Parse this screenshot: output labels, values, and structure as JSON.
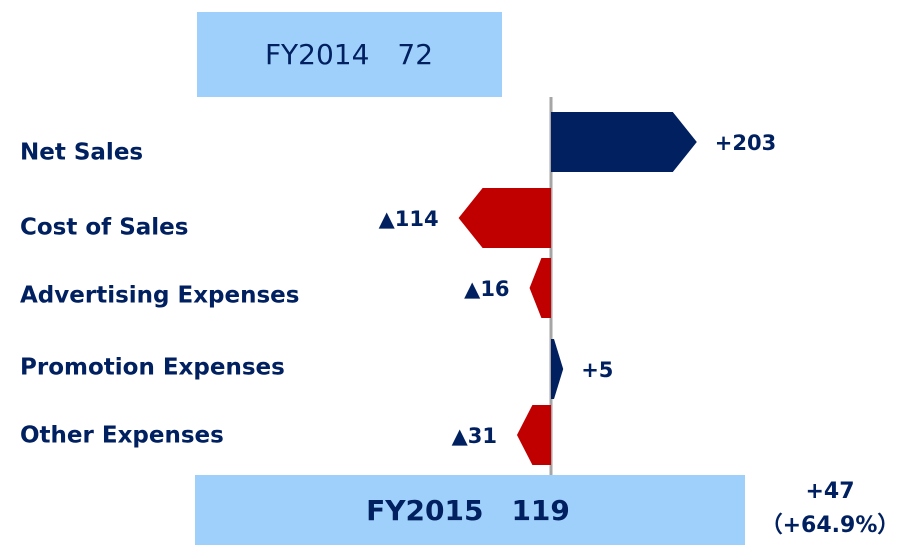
{
  "chart_data": {
    "type": "bar",
    "orientation": "horizontal",
    "categories": [
      "Net Sales",
      "Cost of Sales",
      "Advertising Expenses",
      "Promotion Expenses",
      "Other Expenses"
    ],
    "values": [
      203,
      -114,
      -16,
      5,
      -31
    ],
    "value_labels": [
      "+203",
      "▲114",
      "▲16",
      "+5",
      "▲31"
    ],
    "colors": [
      "#002060",
      "#c00000",
      "#c00000",
      "#002060",
      "#c00000"
    ],
    "annotations": [
      "FY2014　72",
      "FY2015　119",
      "+47",
      "（+64.9%）"
    ]
  }
}
